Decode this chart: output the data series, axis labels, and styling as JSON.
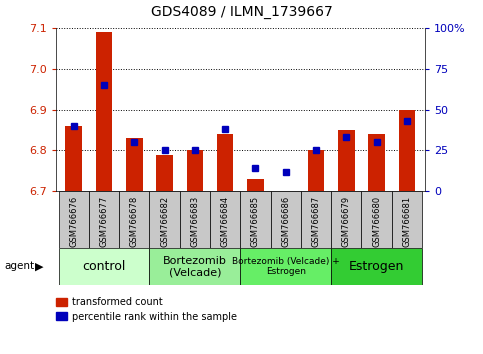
{
  "title": "GDS4089 / ILMN_1739667",
  "samples": [
    "GSM766676",
    "GSM766677",
    "GSM766678",
    "GSM766682",
    "GSM766683",
    "GSM766684",
    "GSM766685",
    "GSM766686",
    "GSM766687",
    "GSM766679",
    "GSM766680",
    "GSM766681"
  ],
  "red_values": [
    6.86,
    7.09,
    6.83,
    6.79,
    6.8,
    6.84,
    6.73,
    6.7,
    6.8,
    6.85,
    6.84,
    6.9
  ],
  "blue_values": [
    40,
    65,
    30,
    25,
    25,
    38,
    14,
    12,
    25,
    33,
    30,
    43
  ],
  "ymin": 6.7,
  "ymax": 7.1,
  "y_ticks": [
    6.7,
    6.8,
    6.9,
    7.0,
    7.1
  ],
  "y2_ticks": [
    0,
    25,
    50,
    75,
    100
  ],
  "y2_labels": [
    "0",
    "25",
    "50",
    "75",
    "100%"
  ],
  "groups": [
    {
      "label": "control",
      "start": 0,
      "end": 3,
      "color": "#ccffcc",
      "fontsize": 9
    },
    {
      "label": "Bortezomib\n(Velcade)",
      "start": 3,
      "end": 6,
      "color": "#99ee99",
      "fontsize": 8
    },
    {
      "label": "Bortezomib (Velcade) +\nEstrogen",
      "start": 6,
      "end": 9,
      "color": "#66ee66",
      "fontsize": 6.5
    },
    {
      "label": "Estrogen",
      "start": 9,
      "end": 12,
      "color": "#33cc33",
      "fontsize": 9
    }
  ],
  "bar_width": 0.55,
  "red_color": "#cc2200",
  "blue_color": "#0000bb",
  "legend_labels": [
    "transformed count",
    "percentile rank within the sample"
  ],
  "grid_color": "black",
  "sample_box_color": "#c8c8c8",
  "agent_label": "agent"
}
